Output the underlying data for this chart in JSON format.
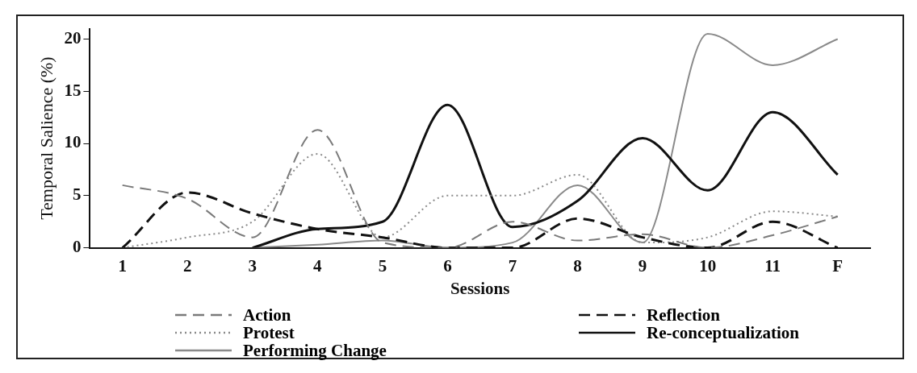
{
  "chart_data": {
    "type": "line",
    "xlabel": "Sessions",
    "ylabel": "Temporal Salience (%)",
    "categories": [
      "1",
      "2",
      "3",
      "4",
      "5",
      "6",
      "7",
      "8",
      "9",
      "10",
      "11",
      "F"
    ],
    "ylim": [
      0,
      21
    ],
    "yticks": [
      0,
      5,
      10,
      15,
      20
    ],
    "grid": false,
    "legend": "bottom",
    "marker": "none",
    "series": [
      {
        "name": "Action",
        "color": "#7a7a7a",
        "line_style": "dashed",
        "values": [
          6,
          4.7,
          1,
          11.3,
          0.5,
          0,
          2.5,
          0.7,
          1.3,
          0,
          1.2,
          3
        ]
      },
      {
        "name": "Reflection",
        "color": "#111111",
        "line_style": "dashed",
        "values": [
          0,
          5.3,
          3.3,
          1.8,
          1,
          0,
          0,
          2.8,
          1,
          0,
          2.5,
          0
        ]
      },
      {
        "name": "Protest",
        "color": "#8a8a8a",
        "line_style": "dotted",
        "values": [
          0,
          1,
          2.5,
          9,
          1,
          5,
          5,
          7,
          0.5,
          1,
          3.5,
          3
        ]
      },
      {
        "name": "Re-conceptualization",
        "color": "#111111",
        "line_style": "solid",
        "values": [
          null,
          null,
          0,
          1.8,
          2.5,
          13.7,
          2,
          4.5,
          10.5,
          5.5,
          13,
          7
        ]
      },
      {
        "name": "Performing Change",
        "color": "#8a8a8a",
        "line_style": "solid",
        "values": [
          null,
          null,
          0,
          0.3,
          0.7,
          0,
          0.5,
          6,
          0.5,
          20.5,
          17.5,
          20
        ]
      }
    ]
  }
}
